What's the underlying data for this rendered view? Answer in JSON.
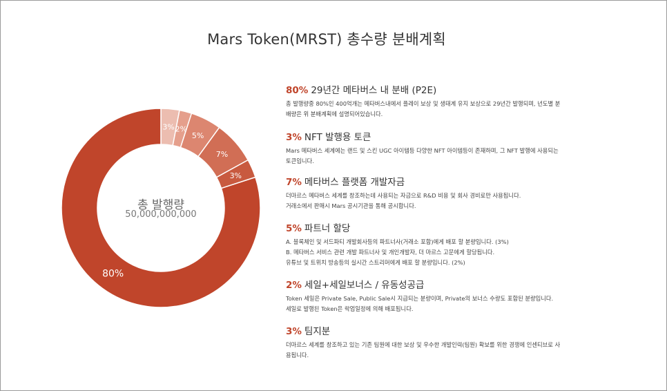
{
  "title": "Mars Token(MRST) 총수량 분배계획",
  "center": {
    "label": "총 발행량",
    "value": "50,000,000,000"
  },
  "chart_data": {
    "type": "pie",
    "title": "Mars Token(MRST) 총수량 분배계획",
    "categories": [
      "29년간 메타버스 내 분배 (P2E)",
      "NFT 발행용 토큰",
      "메타버스 플랫폼 개발자금",
      "파트너 할당",
      "세일+세일보너스 / 유동성공급",
      "팀지분"
    ],
    "values": [
      80,
      3,
      7,
      5,
      2,
      3
    ],
    "slice_labels": [
      "80%",
      "3%",
      "7%",
      "5%",
      "2%",
      "3%"
    ],
    "colors": [
      "#c0452b",
      "#c85a3f",
      "#d16e55",
      "#dc8670",
      "#e59f8c",
      "#ecbdb0"
    ],
    "hole": "inner donut"
  },
  "descriptions": [
    {
      "pct": "80%",
      "heading": "29년간 메타버스 내 분배 (P2E)",
      "lines": [
        "총 발행량중 80%인 400억개는 메타버스내에서 플레이 보상 및 생태계 유지 보상으로 29년간 발행되며, 년도별 분",
        "배량은 위 분배계획에 설명되어있습니다."
      ]
    },
    {
      "pct": "3%",
      "heading": "NFT 발행용 토큰",
      "lines": [
        "Mars 메타버스 세계에는 랜드 및 스킨 UGC 아이템등 다양한 NFT 아이템등이 존재하며, 그 NFT 발행에 사용되는",
        "토큰입니다."
      ]
    },
    {
      "pct": "7%",
      "heading": "메타버스 플랫폼 개발자금",
      "lines": [
        "더마르스 메타버스 세계를 창조하는데 사용되는 자금으로 R&D 비용 및 회사 경비로만 사용됩니다.",
        "거래소에서 판매시 Mars 공시기관을 통해 공시합니다."
      ]
    },
    {
      "pct": "5%",
      "heading": "파트너 할당",
      "lines": [
        "A. 블록체인 및 서드파티 개발회사등의 파트너사(거래소 포함)에게 배포 할 분량입니다. (3%)",
        "B. 메타버스 서비스 관련 개발 파트너사 및 개인개발자, 더 마르스 고문에게 할당됩니다.",
        "    유튜브 및 트위치 방송등의 실시간 스트리머에게 배포 할 분량입니다. (2%)"
      ]
    },
    {
      "pct": "2%",
      "heading": "세일+세일보너스 / 유동성공급",
      "lines": [
        "Token 세일은 Private Sale, Public Sale시 지급되는 분량이며, Private의 보너스 수량도 포함된 분량입니다.",
        "세일로 발행된 Token은 락업일정에 의해 배포됩니다."
      ]
    },
    {
      "pct": "3%",
      "heading": "팀지분",
      "lines": [
        "더마르스 세계를 창조하고 있는 기존 팀원에 대한 보상 및 우수한 개발인력(팀원) 확보를 위한 경쟁에 인센티브로 사",
        "용됩니다."
      ]
    }
  ]
}
